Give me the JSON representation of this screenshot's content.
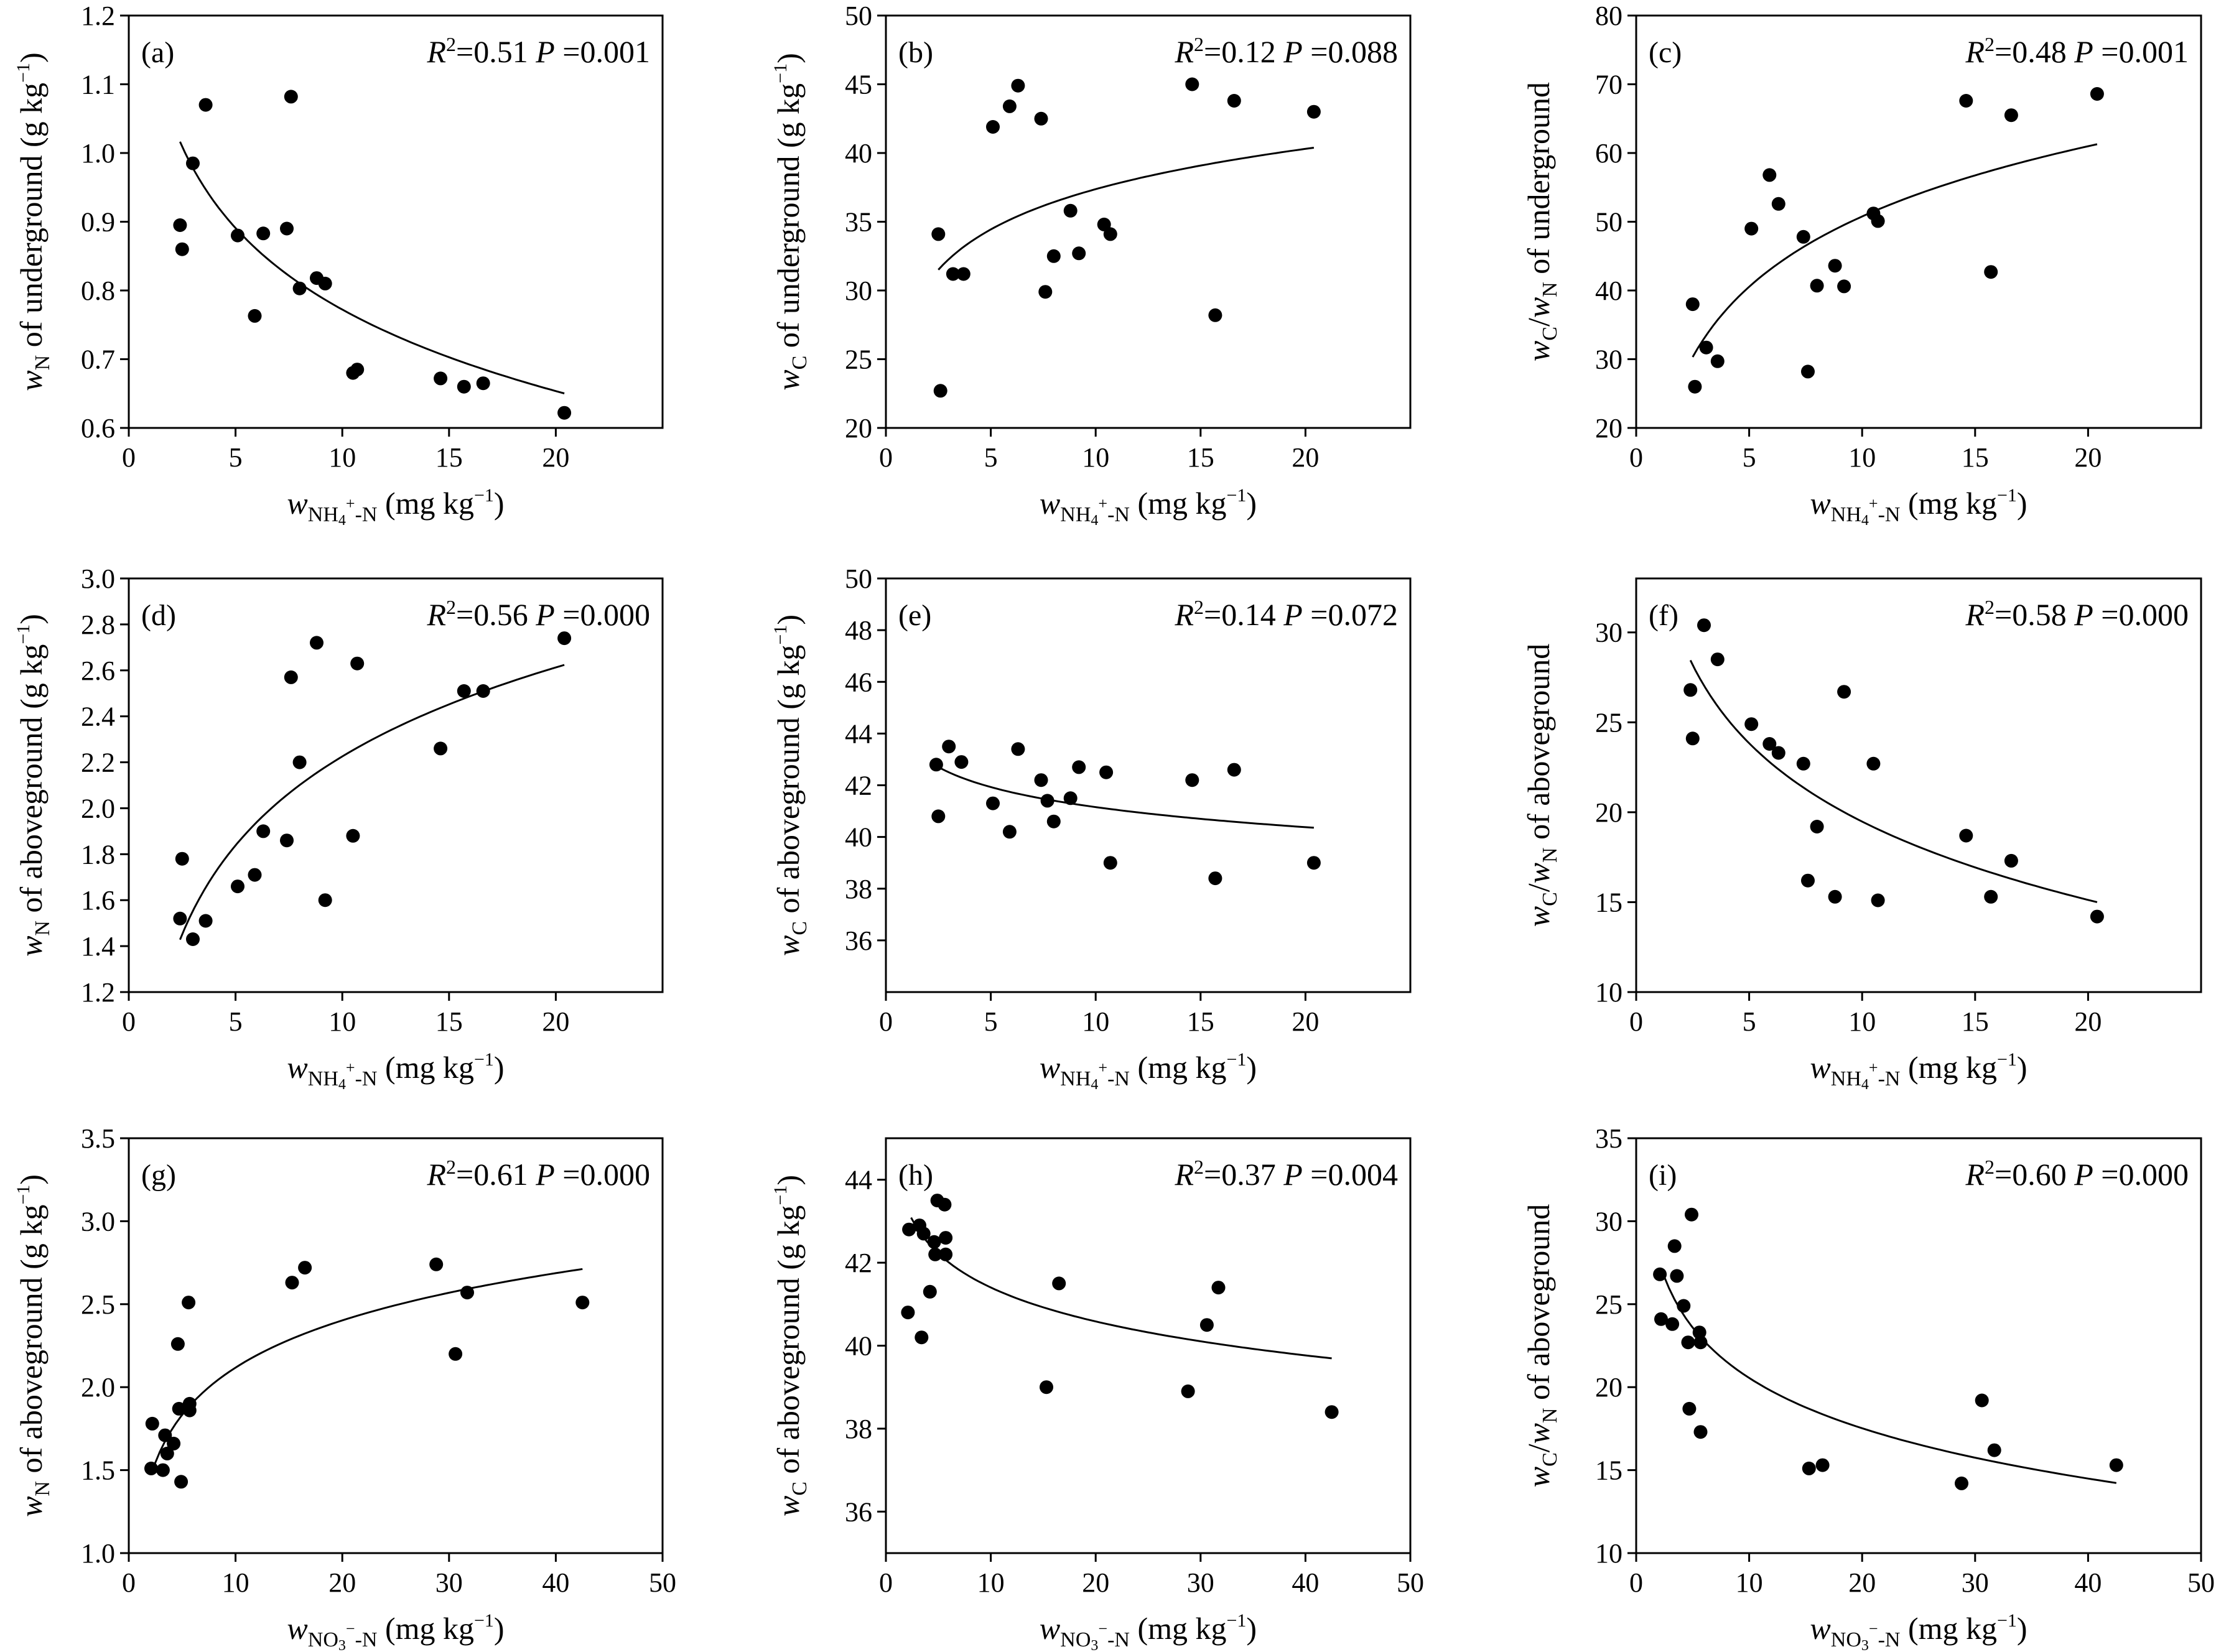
{
  "chart_data": [
    {
      "id": "a",
      "type": "scatter",
      "panel_label": "(a)",
      "r2_label": "R",
      "r2_value": "=0.51",
      "p_label": "P",
      "p_value": "=0.001",
      "xlabel": {
        "prefix": "w",
        "sub": "NH",
        "subsub": "4",
        "sup": "+",
        "suffix": "-N",
        "units": " (mg kg",
        "exp": "−1",
        "close": ")"
      },
      "ylabel": {
        "prefix": "w",
        "sub": "N",
        "middle": " of underground (g kg",
        "exp": "−1",
        "close": ")"
      },
      "xlim": [
        0,
        25
      ],
      "ylim": [
        0.6,
        1.2
      ],
      "xticks": [
        0,
        5,
        10,
        15,
        20
      ],
      "yticks": [
        0.6,
        0.7,
        0.8,
        0.9,
        1.0,
        1.1,
        1.2
      ],
      "ytick_labels": [
        "0.6",
        "0.7",
        "0.8",
        "0.9",
        "1.0",
        "1.1",
        "1.2"
      ],
      "points": [
        [
          2.4,
          0.895
        ],
        [
          2.5,
          0.86
        ],
        [
          3.0,
          0.985
        ],
        [
          3.6,
          1.07
        ],
        [
          5.1,
          0.88
        ],
        [
          5.9,
          0.763
        ],
        [
          6.3,
          0.883
        ],
        [
          7.4,
          0.89
        ],
        [
          7.6,
          1.082
        ],
        [
          8.0,
          0.803
        ],
        [
          8.8,
          0.818
        ],
        [
          9.2,
          0.81
        ],
        [
          10.5,
          0.68
        ],
        [
          10.7,
          0.685
        ],
        [
          14.6,
          0.672
        ],
        [
          15.7,
          0.66
        ],
        [
          16.6,
          0.665
        ],
        [
          20.4,
          0.622
        ]
      ],
      "fit": {
        "a": 1.1662,
        "b": -0.1711,
        "x0": 2.4,
        "x1": 20.4
      }
    },
    {
      "id": "b",
      "type": "scatter",
      "panel_label": "(b)",
      "r2_label": "R",
      "r2_value": "=0.12",
      "p_label": "P",
      "p_value": "=0.088",
      "xlabel": {
        "prefix": "w",
        "sub": "NH",
        "subsub": "4",
        "sup": "+",
        "suffix": "-N",
        "units": " (mg kg",
        "exp": "−1",
        "close": ")"
      },
      "ylabel": {
        "prefix": "w",
        "sub": "C",
        "middle": " of underground (g kg",
        "exp": "−1",
        "close": ")"
      },
      "xlim": [
        0,
        25
      ],
      "ylim": [
        20,
        50
      ],
      "xticks": [
        0,
        5,
        10,
        15,
        20
      ],
      "yticks": [
        20,
        25,
        30,
        35,
        40,
        45,
        50
      ],
      "ytick_labels": [
        "20",
        "25",
        "30",
        "35",
        "40",
        "45",
        "50"
      ],
      "points": [
        [
          2.5,
          34.1
        ],
        [
          2.6,
          22.7
        ],
        [
          3.2,
          31.2
        ],
        [
          3.7,
          31.2
        ],
        [
          5.1,
          41.9
        ],
        [
          5.9,
          43.4
        ],
        [
          6.3,
          44.9
        ],
        [
          7.4,
          42.5
        ],
        [
          7.6,
          29.9
        ],
        [
          8.0,
          32.5
        ],
        [
          8.8,
          35.8
        ],
        [
          9.2,
          32.7
        ],
        [
          10.4,
          34.8
        ],
        [
          10.7,
          34.1
        ],
        [
          14.6,
          45.0
        ],
        [
          15.7,
          28.2
        ],
        [
          16.6,
          43.8
        ],
        [
          20.4,
          43.0
        ]
      ],
      "fit": {
        "a": 27.63,
        "b": 4.23,
        "x0": 2.5,
        "x1": 20.4
      }
    },
    {
      "id": "c",
      "type": "scatter",
      "panel_label": "(c)",
      "r2_label": "R",
      "r2_value": "=0.48",
      "p_label": "P",
      "p_value": "=0.001",
      "xlabel": {
        "prefix": "w",
        "sub": "NH",
        "subsub": "4",
        "sup": "+",
        "suffix": "-N",
        "units": " (mg kg",
        "exp": "−1",
        "close": ")"
      },
      "ylabel": {
        "prefix": "w",
        "sub": "C",
        "middle": "/",
        "prefix2": "w",
        "sub2": "N",
        "middle2": " of underground"
      },
      "xlim": [
        0,
        25
      ],
      "ylim": [
        20,
        80
      ],
      "xticks": [
        0,
        5,
        10,
        15,
        20
      ],
      "yticks": [
        20,
        30,
        40,
        50,
        60,
        70,
        80
      ],
      "ytick_labels": [
        "20",
        "30",
        "40",
        "50",
        "60",
        "70",
        "80"
      ],
      "points": [
        [
          2.5,
          38.0
        ],
        [
          2.6,
          26.0
        ],
        [
          3.1,
          31.7
        ],
        [
          3.6,
          29.7
        ],
        [
          5.1,
          49.0
        ],
        [
          5.9,
          56.8
        ],
        [
          6.3,
          52.6
        ],
        [
          7.4,
          47.8
        ],
        [
          7.6,
          28.2
        ],
        [
          8.0,
          40.7
        ],
        [
          8.8,
          43.6
        ],
        [
          9.2,
          40.6
        ],
        [
          10.5,
          51.2
        ],
        [
          10.7,
          50.1
        ],
        [
          14.6,
          67.6
        ],
        [
          15.7,
          42.7
        ],
        [
          16.6,
          65.5
        ],
        [
          20.4,
          68.6
        ]
      ],
      "fit": {
        "a": 16.8,
        "b": 14.75,
        "x0": 2.5,
        "x1": 20.4
      }
    },
    {
      "id": "d",
      "type": "scatter",
      "panel_label": "(d)",
      "r2_label": "R",
      "r2_value": "=0.56",
      "p_label": "P",
      "p_value": "=0.000",
      "xlabel": {
        "prefix": "w",
        "sub": "NH",
        "subsub": "4",
        "sup": "+",
        "suffix": "-N",
        "units": " (mg kg",
        "exp": "−1",
        "close": ")"
      },
      "ylabel": {
        "prefix": "w",
        "sub": "N",
        "middle": " of aboveground (g kg",
        "exp": "−1",
        "close": ")"
      },
      "xlim": [
        0,
        25
      ],
      "ylim": [
        1.2,
        3.0
      ],
      "xticks": [
        0,
        5,
        10,
        15,
        20
      ],
      "yticks": [
        1.2,
        1.4,
        1.6,
        1.8,
        2.0,
        2.2,
        2.4,
        2.6,
        2.8,
        3.0
      ],
      "ytick_labels": [
        "1.2",
        "1.4",
        "1.6",
        "1.8",
        "2.0",
        "2.2",
        "2.4",
        "2.6",
        "2.8",
        "3.0"
      ],
      "points": [
        [
          2.4,
          1.52
        ],
        [
          2.5,
          1.78
        ],
        [
          3.0,
          1.43
        ],
        [
          3.6,
          1.51
        ],
        [
          5.1,
          1.66
        ],
        [
          5.9,
          1.71
        ],
        [
          6.3,
          1.9
        ],
        [
          7.4,
          1.86
        ],
        [
          7.6,
          2.57
        ],
        [
          8.0,
          2.2
        ],
        [
          8.8,
          2.72
        ],
        [
          9.2,
          1.6
        ],
        [
          10.5,
          1.88
        ],
        [
          10.7,
          2.63
        ],
        [
          14.6,
          2.26
        ],
        [
          15.7,
          2.51
        ],
        [
          16.6,
          2.51
        ],
        [
          20.4,
          2.74
        ]
      ],
      "fit": {
        "a": 0.939,
        "b": 0.5587,
        "x0": 2.4,
        "x1": 20.4
      }
    },
    {
      "id": "e",
      "type": "scatter",
      "panel_label": "(e)",
      "r2_label": "R",
      "r2_value": "=0.14",
      "p_label": "P",
      "p_value": "=0.072",
      "xlabel": {
        "prefix": "w",
        "sub": "NH",
        "subsub": "4",
        "sup": "+",
        "suffix": "-N",
        "units": " (mg kg",
        "exp": "−1",
        "close": ")"
      },
      "ylabel": {
        "prefix": "w",
        "sub": "C",
        "middle": " of aboveground (g kg",
        "exp": "−1",
        "close": ")"
      },
      "xlim": [
        0,
        25
      ],
      "ylim": [
        34,
        50
      ],
      "xticks": [
        0,
        5,
        10,
        15,
        20
      ],
      "yticks": [
        36,
        38,
        40,
        42,
        44,
        46,
        48,
        50
      ],
      "ytick_labels": [
        "36",
        "38",
        "40",
        "42",
        "44",
        "46",
        "48",
        "50"
      ],
      "points": [
        [
          2.4,
          42.8
        ],
        [
          2.5,
          40.8
        ],
        [
          3.0,
          43.5
        ],
        [
          3.6,
          42.9
        ],
        [
          5.1,
          41.3
        ],
        [
          5.9,
          40.2
        ],
        [
          6.3,
          43.4
        ],
        [
          7.4,
          42.2
        ],
        [
          7.7,
          41.4
        ],
        [
          8.0,
          40.6
        ],
        [
          8.8,
          41.5
        ],
        [
          9.2,
          42.7
        ],
        [
          10.5,
          42.5
        ],
        [
          10.7,
          39.0
        ],
        [
          14.6,
          42.2
        ],
        [
          15.7,
          38.4
        ],
        [
          16.6,
          42.6
        ],
        [
          20.4,
          39.0
        ]
      ],
      "fit": {
        "a": 43.73,
        "b": -1.1184,
        "x0": 2.4,
        "x1": 20.4
      }
    },
    {
      "id": "f",
      "type": "scatter",
      "panel_label": "(f)",
      "r2_label": "R",
      "r2_value": "=0.58",
      "p_label": "P",
      "p_value": "=0.000",
      "xlabel": {
        "prefix": "w",
        "sub": "NH",
        "subsub": "4",
        "sup": "+",
        "suffix": "-N",
        "units": " (mg kg",
        "exp": "−1",
        "close": ")"
      },
      "ylabel": {
        "prefix": "w",
        "sub": "C",
        "middle": "/",
        "prefix2": "w",
        "sub2": "N",
        "middle2": " of aboveground"
      },
      "xlim": [
        0,
        25
      ],
      "ylim": [
        10,
        33
      ],
      "xticks": [
        0,
        5,
        10,
        15,
        20
      ],
      "yticks": [
        10,
        15,
        20,
        25,
        30
      ],
      "ytick_labels": [
        "10",
        "15",
        "20",
        "25",
        "30"
      ],
      "points": [
        [
          2.4,
          26.8
        ],
        [
          2.5,
          24.1
        ],
        [
          3.0,
          30.4
        ],
        [
          3.6,
          28.5
        ],
        [
          5.1,
          24.9
        ],
        [
          5.9,
          23.8
        ],
        [
          6.3,
          23.3
        ],
        [
          7.4,
          22.7
        ],
        [
          7.6,
          16.2
        ],
        [
          8.0,
          19.2
        ],
        [
          8.8,
          15.3
        ],
        [
          9.2,
          26.7
        ],
        [
          10.5,
          22.7
        ],
        [
          10.7,
          15.1
        ],
        [
          14.6,
          18.7
        ],
        [
          15.7,
          15.3
        ],
        [
          16.6,
          17.3
        ],
        [
          20.4,
          14.2
        ]
      ],
      "fit": {
        "a": 33.95,
        "b": -6.284,
        "x0": 2.4,
        "x1": 20.4
      }
    },
    {
      "id": "g",
      "type": "scatter",
      "panel_label": "(g)",
      "r2_label": "R",
      "r2_value": "=0.61",
      "p_label": "P",
      "p_value": "=0.000",
      "xlabel": {
        "prefix": "w",
        "sub": "NO",
        "subsub": "3",
        "sup": "−",
        "suffix": "-N",
        "units": " (mg kg",
        "exp": "−1",
        "close": ")"
      },
      "ylabel": {
        "prefix": "w",
        "sub": "N",
        "middle": " of aboveground (g kg",
        "exp": "−1",
        "close": ")"
      },
      "xlim": [
        0,
        50
      ],
      "ylim": [
        1.0,
        3.5
      ],
      "xticks": [
        0,
        10,
        20,
        30,
        40,
        50
      ],
      "yticks": [
        1.0,
        1.5,
        2.0,
        2.5,
        3.0,
        3.5
      ],
      "ytick_labels": [
        "1.0",
        "1.5",
        "2.0",
        "2.5",
        "3.0",
        "3.5"
      ],
      "points": [
        [
          2.1,
          1.51
        ],
        [
          2.2,
          1.78
        ],
        [
          3.2,
          1.5
        ],
        [
          3.4,
          1.71
        ],
        [
          3.6,
          1.6
        ],
        [
          4.2,
          1.66
        ],
        [
          4.6,
          2.26
        ],
        [
          4.7,
          1.87
        ],
        [
          4.9,
          1.43
        ],
        [
          5.6,
          2.51
        ],
        [
          5.7,
          1.86
        ],
        [
          5.7,
          1.9
        ],
        [
          15.3,
          2.63
        ],
        [
          16.5,
          2.72
        ],
        [
          28.8,
          2.74
        ],
        [
          30.6,
          2.2
        ],
        [
          31.7,
          2.57
        ],
        [
          42.5,
          2.51
        ]
      ],
      "fit": {
        "a": 1.172,
        "b": 0.4107,
        "x0": 2.4,
        "x1": 42.5
      }
    },
    {
      "id": "h",
      "type": "scatter",
      "panel_label": "(h)",
      "r2_label": "R",
      "r2_value": "=0.37",
      "p_label": "P",
      "p_value": "=0.004",
      "xlabel": {
        "prefix": "w",
        "sub": "NO",
        "subsub": "3",
        "sup": "−",
        "suffix": "-N",
        "units": " (mg kg",
        "exp": "−1",
        "close": ")"
      },
      "ylabel": {
        "prefix": "w",
        "sub": "C",
        "middle": " of aboveground (g kg",
        "exp": "−1",
        "close": ")"
      },
      "xlim": [
        0,
        50
      ],
      "ylim": [
        35,
        45
      ],
      "xticks": [
        0,
        10,
        20,
        30,
        40,
        50
      ],
      "yticks": [
        36,
        38,
        40,
        42,
        44
      ],
      "ytick_labels": [
        "36",
        "38",
        "40",
        "42",
        "44"
      ],
      "points": [
        [
          2.1,
          40.8
        ],
        [
          2.2,
          42.8
        ],
        [
          3.2,
          42.9
        ],
        [
          3.4,
          40.2
        ],
        [
          3.6,
          42.7
        ],
        [
          4.2,
          41.3
        ],
        [
          4.6,
          42.5
        ],
        [
          4.7,
          42.2
        ],
        [
          4.9,
          43.5
        ],
        [
          5.6,
          43.4
        ],
        [
          5.7,
          42.6
        ],
        [
          5.7,
          42.2
        ],
        [
          15.3,
          39.0
        ],
        [
          16.5,
          41.5
        ],
        [
          28.8,
          38.9
        ],
        [
          30.6,
          40.5
        ],
        [
          31.7,
          41.4
        ],
        [
          42.5,
          38.4
        ]
      ],
      "fit": {
        "a": 44.12,
        "b": -1.1803,
        "x0": 2.4,
        "x1": 42.5
      }
    },
    {
      "id": "i",
      "type": "scatter",
      "panel_label": "(i)",
      "r2_label": "R",
      "r2_value": "=0.60",
      "p_label": "P",
      "p_value": "=0.000",
      "xlabel": {
        "prefix": "w",
        "sub": "NO",
        "subsub": "3",
        "sup": "−",
        "suffix": "-N",
        "units": " (mg kg",
        "exp": "−1",
        "close": ")"
      },
      "ylabel": {
        "prefix": "w",
        "sub": "C",
        "middle": "/",
        "prefix2": "w",
        "sub2": "N",
        "middle2": " of aboveground"
      },
      "xlim": [
        0,
        50
      ],
      "ylim": [
        10,
        35
      ],
      "xticks": [
        0,
        10,
        20,
        30,
        40,
        50
      ],
      "yticks": [
        10,
        15,
        20,
        25,
        30,
        35
      ],
      "ytick_labels": [
        "10",
        "15",
        "20",
        "25",
        "30",
        "35"
      ],
      "points": [
        [
          2.1,
          26.8
        ],
        [
          2.2,
          24.1
        ],
        [
          3.2,
          23.8
        ],
        [
          3.4,
          28.5
        ],
        [
          3.6,
          26.7
        ],
        [
          4.2,
          24.9
        ],
        [
          4.6,
          22.7
        ],
        [
          4.7,
          18.7
        ],
        [
          4.9,
          30.4
        ],
        [
          5.6,
          23.3
        ],
        [
          5.7,
          22.7
        ],
        [
          5.7,
          17.3
        ],
        [
          15.3,
          15.1
        ],
        [
          16.5,
          15.3
        ],
        [
          28.8,
          14.2
        ],
        [
          30.6,
          19.2
        ],
        [
          31.7,
          16.2
        ],
        [
          42.5,
          15.3
        ]
      ],
      "fit": {
        "a": 30.63,
        "b": -4.375,
        "x0": 2.4,
        "x1": 42.5
      }
    }
  ]
}
